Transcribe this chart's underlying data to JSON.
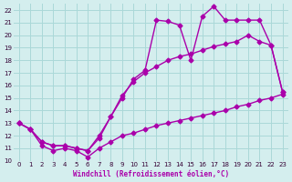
{
  "xlabel": "Windchill (Refroidissement éolien,°C)",
  "xlim": [
    -0.5,
    23.5
  ],
  "ylim": [
    10,
    22.5
  ],
  "xticks": [
    0,
    1,
    2,
    3,
    4,
    5,
    6,
    7,
    8,
    9,
    10,
    11,
    12,
    13,
    14,
    15,
    16,
    17,
    18,
    19,
    20,
    21,
    22,
    23
  ],
  "yticks": [
    10,
    11,
    12,
    13,
    14,
    15,
    16,
    17,
    18,
    19,
    20,
    21,
    22
  ],
  "bg_color": "#d4eeee",
  "grid_color": "#aad8d8",
  "line_color": "#aa00aa",
  "line1_x": [
    0,
    1,
    2,
    3,
    4,
    5,
    6,
    7,
    8,
    9,
    10,
    11,
    12,
    13,
    14,
    15,
    16,
    17,
    18,
    19,
    20,
    21,
    22,
    23
  ],
  "line1_y": [
    13.0,
    12.5,
    11.2,
    10.8,
    11.0,
    10.8,
    10.3,
    11.0,
    11.5,
    12.0,
    12.2,
    12.5,
    12.8,
    13.0,
    13.2,
    13.4,
    13.6,
    13.8,
    14.0,
    14.3,
    14.5,
    14.8,
    15.0,
    15.3
  ],
  "line2_x": [
    0,
    1,
    2,
    3,
    4,
    5,
    6,
    7,
    8,
    9,
    10,
    11,
    12,
    13,
    14,
    15,
    16,
    17,
    18,
    19,
    20,
    21,
    22,
    23
  ],
  "line2_y": [
    13.0,
    12.5,
    11.5,
    11.2,
    11.2,
    11.0,
    10.8,
    12.0,
    13.5,
    15.2,
    16.3,
    17.0,
    17.5,
    18.0,
    18.3,
    18.5,
    18.8,
    19.1,
    19.3,
    19.5,
    20.0,
    19.5,
    19.2,
    15.5
  ],
  "line3_x": [
    0,
    1,
    2,
    3,
    4,
    5,
    6,
    7,
    8,
    9,
    10,
    11,
    12,
    13,
    14,
    15,
    16,
    17,
    18,
    19,
    20,
    21,
    22,
    23
  ],
  "line3_y": [
    13.0,
    12.5,
    11.5,
    11.2,
    11.2,
    11.0,
    10.8,
    11.8,
    13.5,
    15.0,
    16.5,
    17.2,
    21.2,
    21.1,
    20.8,
    18.0,
    21.5,
    22.3,
    21.2,
    21.2,
    21.2,
    21.2,
    19.2,
    15.5
  ],
  "marker": "D",
  "markersize": 2.5,
  "linewidth": 1.0,
  "tick_fontsize": 5.0,
  "xlabel_fontsize": 5.5
}
